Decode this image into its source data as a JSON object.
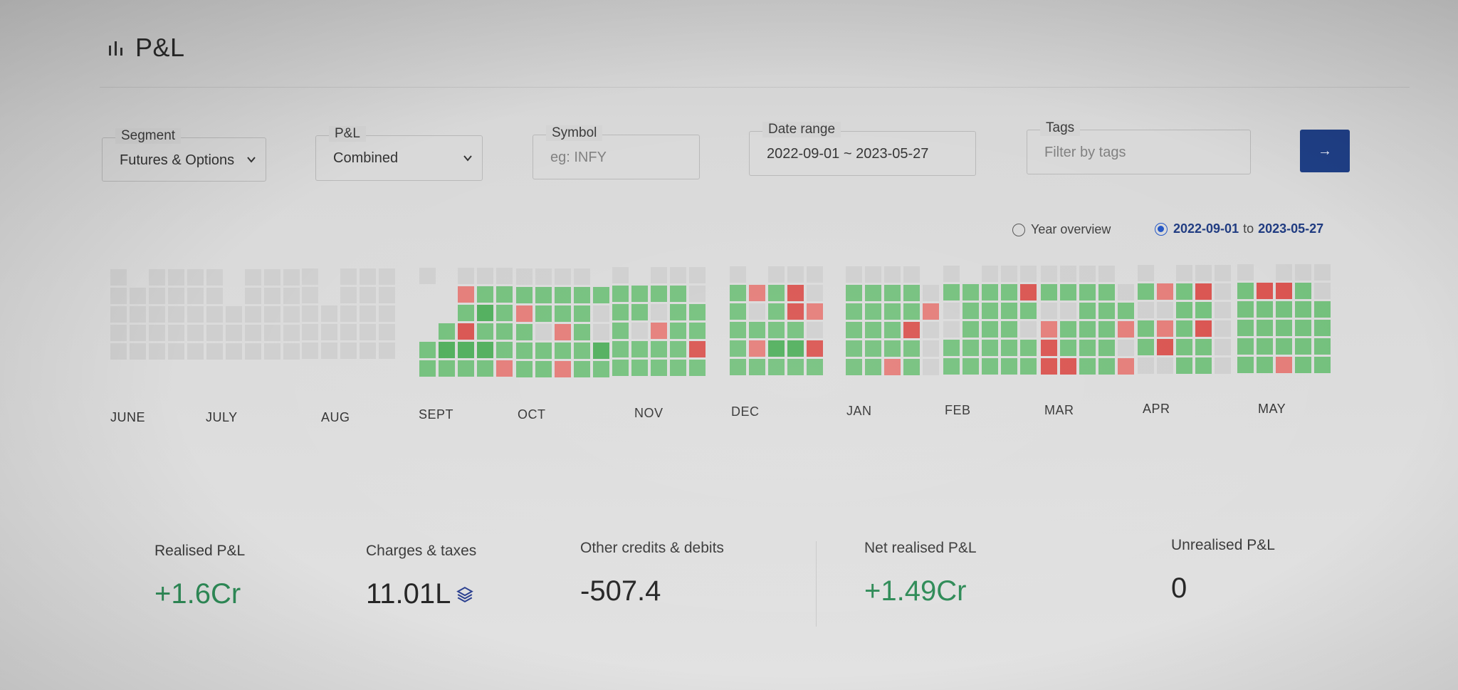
{
  "header": {
    "title": "P&L",
    "icon": "bar-chart-icon"
  },
  "filters": {
    "segment": {
      "label": "Segment",
      "value": "Futures & Options"
    },
    "pnl": {
      "label": "P&L",
      "value": "Combined"
    },
    "symbol": {
      "label": "Symbol",
      "placeholder": "eg: INFY"
    },
    "date_range": {
      "label": "Date range",
      "value": "2022-09-01 ~ 2023-05-27"
    },
    "tags": {
      "label": "Tags",
      "placeholder": "Filter by tags"
    },
    "go_button": {
      "icon": "arrow-right-icon",
      "symbol": "→"
    }
  },
  "view_toggle": {
    "year_overview": "Year overview",
    "range_start": "2022-09-01",
    "range_sep": "to",
    "range_end": "2023-05-27",
    "selected": "range"
  },
  "colors": {
    "profit": "#4fae5b",
    "profit_light": "#73c07c",
    "loss": "#d9534f",
    "loss_light": "#e47c78",
    "inactive": "#cfcfcf",
    "accent": "#1f3f86"
  },
  "months": [
    "JUNE",
    "JULY",
    "AUG",
    "SEPT",
    "OCT",
    "NOV",
    "DEC",
    "JAN",
    "FEB",
    "MAR",
    "APR",
    "MAY"
  ],
  "stats": {
    "realised": {
      "label": "Realised P&L",
      "value": "+1.6Cr"
    },
    "charges": {
      "label": "Charges & taxes",
      "value": "11.01L"
    },
    "other": {
      "label": "Other credits & debits",
      "value": "-507.4"
    },
    "net": {
      "label": "Net realised P&L",
      "value": "+1.49Cr"
    },
    "unrealised": {
      "label": "Unrealised P&L",
      "value": "0"
    }
  }
}
